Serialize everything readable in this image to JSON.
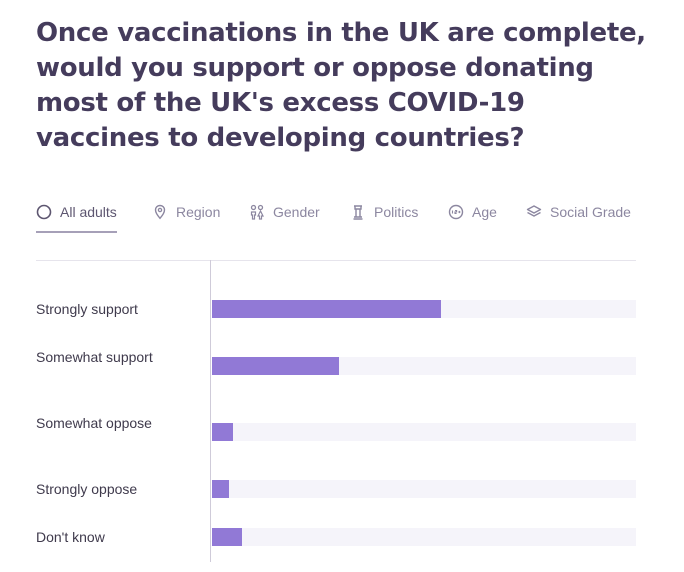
{
  "title": "Once vaccinations in the UK are complete, would you support or oppose donating most of the UK's excess COVID-19 vaccines to developing countries?",
  "tabs": [
    {
      "label": "All adults",
      "icon": "circle-icon",
      "active": true
    },
    {
      "label": "Region",
      "icon": "location-pin-icon",
      "active": false
    },
    {
      "label": "Gender",
      "icon": "gender-icon",
      "active": false
    },
    {
      "label": "Politics",
      "icon": "politics-icon",
      "active": false
    },
    {
      "label": "Age",
      "icon": "age-icon",
      "active": false
    },
    {
      "label": "Social Grade",
      "icon": "layers-icon",
      "active": false
    }
  ],
  "colors": {
    "title": "#453c5c",
    "bar": "#9179d6",
    "track": "#f5f4fa"
  },
  "chart_data": {
    "type": "bar",
    "orientation": "horizontal",
    "categories": [
      "Strongly support",
      "Somewhat support",
      "Somewhat oppose",
      "Strongly oppose",
      "Don't know"
    ],
    "values": [
      54,
      30,
      5,
      4,
      7
    ],
    "value_suffix": "%",
    "xlim": [
      0,
      100
    ]
  }
}
